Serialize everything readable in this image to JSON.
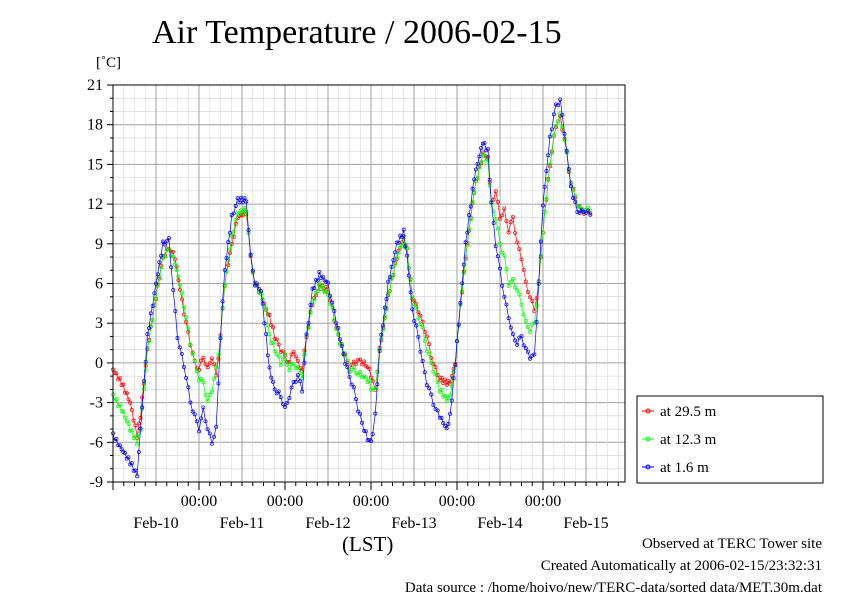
{
  "chart_data": {
    "type": "line",
    "title": "Air Temperature / 2006-02-15",
    "ylabel": "[˚C]",
    "xlabel": "(LST)",
    "ylim": [
      -9,
      21
    ],
    "yticks": [
      -9,
      -6,
      -3,
      0,
      3,
      6,
      9,
      12,
      15,
      18,
      21
    ],
    "xlim_days": [
      0,
      6
    ],
    "xticks": [
      {
        "day": 1,
        "time": "00:00",
        "date": "Feb-10"
      },
      {
        "day": 2,
        "time": "00:00",
        "date": "Feb-11"
      },
      {
        "day": 3,
        "time": "00:00",
        "date": "Feb-12"
      },
      {
        "day": 4,
        "time": "00:00",
        "date": "Feb-13"
      },
      {
        "day": 5,
        "time": "00:00",
        "date": "Feb-14"
      },
      {
        "day": 6,
        "time": "",
        "date": "Feb-15"
      }
    ],
    "grid": true,
    "legend_position": "right",
    "series": [
      {
        "name": "at 29.5 m",
        "color": "#ff0000",
        "points": [
          [
            0.0,
            -0.5
          ],
          [
            0.1,
            -1.5
          ],
          [
            0.2,
            -3
          ],
          [
            0.28,
            -5.5
          ],
          [
            0.32,
            -4
          ],
          [
            0.4,
            1
          ],
          [
            0.5,
            5
          ],
          [
            0.58,
            8
          ],
          [
            0.65,
            8.7
          ],
          [
            0.72,
            8
          ],
          [
            0.78,
            5.5
          ],
          [
            0.85,
            3
          ],
          [
            0.9,
            1.5
          ],
          [
            0.95,
            0
          ],
          [
            1.0,
            -0.5
          ],
          [
            1.05,
            0.5
          ],
          [
            1.1,
            -0.5
          ],
          [
            1.15,
            0.5
          ],
          [
            1.2,
            -1
          ],
          [
            1.25,
            2
          ],
          [
            1.3,
            6
          ],
          [
            1.38,
            9
          ],
          [
            1.45,
            11
          ],
          [
            1.55,
            11.4
          ],
          [
            1.6,
            8
          ],
          [
            1.65,
            6
          ],
          [
            1.72,
            5.3
          ],
          [
            1.78,
            4
          ],
          [
            1.82,
            3.5
          ],
          [
            1.88,
            2
          ],
          [
            1.95,
            1
          ],
          [
            2.0,
            0.5
          ],
          [
            2.05,
            0
          ],
          [
            2.1,
            1
          ],
          [
            2.15,
            0
          ],
          [
            2.2,
            -0.5
          ],
          [
            2.25,
            2
          ],
          [
            2.32,
            4.5
          ],
          [
            2.4,
            5.8
          ],
          [
            2.5,
            5.5
          ],
          [
            2.55,
            4
          ],
          [
            2.62,
            2
          ],
          [
            2.7,
            0.5
          ],
          [
            2.75,
            -0.5
          ],
          [
            2.8,
            0
          ],
          [
            2.85,
            0.2
          ],
          [
            2.92,
            0
          ],
          [
            2.98,
            -0.5
          ],
          [
            3.02,
            -1.5
          ],
          [
            3.05,
            -2
          ],
          [
            3.1,
            1
          ],
          [
            3.2,
            5
          ],
          [
            3.3,
            8
          ],
          [
            3.38,
            9.5
          ],
          [
            3.42,
            8.5
          ],
          [
            3.48,
            5
          ],
          [
            3.55,
            4
          ],
          [
            3.6,
            3
          ],
          [
            3.65,
            2
          ],
          [
            3.7,
            0.5
          ],
          [
            3.75,
            -0.5
          ],
          [
            3.8,
            -1.2
          ],
          [
            3.88,
            -1.5
          ],
          [
            3.92,
            -1.5
          ],
          [
            3.98,
            0
          ],
          [
            4.02,
            3
          ],
          [
            4.1,
            8
          ],
          [
            4.2,
            13
          ],
          [
            4.3,
            15.8
          ],
          [
            4.36,
            15.5
          ],
          [
            4.4,
            12
          ],
          [
            4.45,
            13
          ],
          [
            4.5,
            11
          ],
          [
            4.55,
            11.5
          ],
          [
            4.6,
            10
          ],
          [
            4.65,
            11
          ],
          [
            4.7,
            9
          ],
          [
            4.75,
            8
          ],
          [
            4.8,
            6
          ],
          [
            4.85,
            5
          ],
          [
            4.9,
            4
          ],
          [
            4.95,
            6
          ],
          [
            5.0,
            10
          ],
          [
            5.08,
            15
          ],
          [
            5.15,
            18
          ],
          [
            5.2,
            18.5
          ],
          [
            5.25,
            17
          ],
          [
            5.3,
            14.5
          ],
          [
            5.35,
            13
          ],
          [
            5.4,
            12
          ],
          [
            5.45,
            11.4
          ],
          [
            5.5,
            11.5
          ],
          [
            5.55,
            11.3
          ]
        ]
      },
      {
        "name": "at 12.3 m",
        "color": "#00ff00",
        "points": [
          [
            0.0,
            -2.5
          ],
          [
            0.1,
            -3.5
          ],
          [
            0.2,
            -5
          ],
          [
            0.28,
            -6
          ],
          [
            0.32,
            -5
          ],
          [
            0.4,
            1
          ],
          [
            0.5,
            5
          ],
          [
            0.58,
            8
          ],
          [
            0.65,
            8.6
          ],
          [
            0.72,
            7.5
          ],
          [
            0.78,
            6
          ],
          [
            0.85,
            3.5
          ],
          [
            0.9,
            1.5
          ],
          [
            0.95,
            0
          ],
          [
            1.0,
            -1.2
          ],
          [
            1.05,
            -1.5
          ],
          [
            1.1,
            -3
          ],
          [
            1.15,
            -2
          ],
          [
            1.2,
            -0.5
          ],
          [
            1.25,
            2
          ],
          [
            1.3,
            6
          ],
          [
            1.38,
            9.5
          ],
          [
            1.45,
            11.3
          ],
          [
            1.55,
            11.6
          ],
          [
            1.6,
            8
          ],
          [
            1.65,
            6
          ],
          [
            1.72,
            5.2
          ],
          [
            1.78,
            4
          ],
          [
            1.82,
            2
          ],
          [
            1.88,
            1
          ],
          [
            1.95,
            0
          ],
          [
            2.0,
            0.5
          ],
          [
            2.05,
            -0.5
          ],
          [
            2.1,
            0
          ],
          [
            2.15,
            -0.5
          ],
          [
            2.2,
            -1
          ],
          [
            2.25,
            2
          ],
          [
            2.32,
            4.5
          ],
          [
            2.4,
            5.9
          ],
          [
            2.5,
            5.2
          ],
          [
            2.55,
            4
          ],
          [
            2.62,
            2
          ],
          [
            2.7,
            0.5
          ],
          [
            2.75,
            -0.5
          ],
          [
            2.8,
            -0.5
          ],
          [
            2.85,
            -0.8
          ],
          [
            2.92,
            -1
          ],
          [
            2.98,
            -1.5
          ],
          [
            3.02,
            -2.2
          ],
          [
            3.05,
            -2
          ],
          [
            3.1,
            1
          ],
          [
            3.2,
            5
          ],
          [
            3.3,
            8
          ],
          [
            3.38,
            9.3
          ],
          [
            3.42,
            8.5
          ],
          [
            3.48,
            5
          ],
          [
            3.55,
            3.5
          ],
          [
            3.6,
            2.5
          ],
          [
            3.65,
            1
          ],
          [
            3.7,
            0
          ],
          [
            3.75,
            -1
          ],
          [
            3.8,
            -2
          ],
          [
            3.88,
            -2.8
          ],
          [
            3.92,
            -2.5
          ],
          [
            3.98,
            0
          ],
          [
            4.02,
            3
          ],
          [
            4.1,
            8
          ],
          [
            4.2,
            13
          ],
          [
            4.3,
            15.8
          ],
          [
            4.36,
            15.2
          ],
          [
            4.4,
            12
          ],
          [
            4.45,
            11
          ],
          [
            4.5,
            9
          ],
          [
            4.55,
            8
          ],
          [
            4.6,
            6
          ],
          [
            4.65,
            6.2
          ],
          [
            4.7,
            5.5
          ],
          [
            4.75,
            4.5
          ],
          [
            4.8,
            3
          ],
          [
            4.85,
            2.5
          ],
          [
            4.9,
            3
          ],
          [
            4.95,
            6
          ],
          [
            5.0,
            10
          ],
          [
            5.08,
            15
          ],
          [
            5.15,
            18
          ],
          [
            5.2,
            18.7
          ],
          [
            5.25,
            17
          ],
          [
            5.3,
            14.5
          ],
          [
            5.35,
            13
          ],
          [
            5.4,
            12
          ],
          [
            5.45,
            11.5
          ],
          [
            5.5,
            11.6
          ],
          [
            5.55,
            11.5
          ]
        ]
      },
      {
        "name": "at 1.6 m",
        "color": "#0000ff",
        "points": [
          [
            0.0,
            -5.5
          ],
          [
            0.1,
            -6.5
          ],
          [
            0.2,
            -7.5
          ],
          [
            0.28,
            -8.5
          ],
          [
            0.32,
            -5
          ],
          [
            0.4,
            2
          ],
          [
            0.5,
            6
          ],
          [
            0.58,
            9
          ],
          [
            0.65,
            9.3
          ],
          [
            0.7,
            5.5
          ],
          [
            0.75,
            2
          ],
          [
            0.8,
            0.5
          ],
          [
            0.85,
            -1
          ],
          [
            0.9,
            -3
          ],
          [
            0.95,
            -4
          ],
          [
            1.0,
            -5
          ],
          [
            1.05,
            -3.5
          ],
          [
            1.1,
            -5
          ],
          [
            1.15,
            -6
          ],
          [
            1.2,
            -5
          ],
          [
            1.25,
            2
          ],
          [
            1.3,
            7
          ],
          [
            1.38,
            11
          ],
          [
            1.45,
            12.3
          ],
          [
            1.55,
            12.3
          ],
          [
            1.6,
            8
          ],
          [
            1.65,
            6
          ],
          [
            1.72,
            5.5
          ],
          [
            1.78,
            2
          ],
          [
            1.82,
            -0.5
          ],
          [
            1.88,
            -2
          ],
          [
            1.95,
            -2.5
          ],
          [
            2.0,
            -3.5
          ],
          [
            2.05,
            -2.5
          ],
          [
            2.1,
            -1.5
          ],
          [
            2.15,
            -1
          ],
          [
            2.2,
            -2
          ],
          [
            2.25,
            2
          ],
          [
            2.32,
            5.5
          ],
          [
            2.4,
            6.7
          ],
          [
            2.5,
            6
          ],
          [
            2.55,
            4.5
          ],
          [
            2.62,
            2.5
          ],
          [
            2.7,
            0
          ],
          [
            2.75,
            -1
          ],
          [
            2.8,
            -2
          ],
          [
            2.85,
            -3.5
          ],
          [
            2.92,
            -5
          ],
          [
            2.98,
            -6
          ],
          [
            3.02,
            -5.5
          ],
          [
            3.05,
            -4
          ],
          [
            3.1,
            1
          ],
          [
            3.2,
            6
          ],
          [
            3.3,
            9
          ],
          [
            3.38,
            9.9
          ],
          [
            3.42,
            8
          ],
          [
            3.48,
            4
          ],
          [
            3.55,
            2
          ],
          [
            3.6,
            0
          ],
          [
            3.65,
            -1.5
          ],
          [
            3.7,
            -2.5
          ],
          [
            3.75,
            -3.5
          ],
          [
            3.8,
            -4
          ],
          [
            3.88,
            -5
          ],
          [
            3.92,
            -4
          ],
          [
            3.98,
            0
          ],
          [
            4.02,
            3
          ],
          [
            4.1,
            9
          ],
          [
            4.2,
            14
          ],
          [
            4.3,
            16.7
          ],
          [
            4.36,
            16
          ],
          [
            4.4,
            12
          ],
          [
            4.45,
            9
          ],
          [
            4.5,
            7
          ],
          [
            4.55,
            5
          ],
          [
            4.6,
            3.5
          ],
          [
            4.65,
            2
          ],
          [
            4.7,
            1.5
          ],
          [
            4.75,
            2
          ],
          [
            4.8,
            1
          ],
          [
            4.85,
            0.5
          ],
          [
            4.9,
            0.5
          ],
          [
            4.95,
            6
          ],
          [
            5.0,
            12
          ],
          [
            5.08,
            17
          ],
          [
            5.15,
            19.5
          ],
          [
            5.2,
            19.8
          ],
          [
            5.25,
            17.5
          ],
          [
            5.3,
            14.5
          ],
          [
            5.35,
            12.5
          ],
          [
            5.4,
            11.5
          ],
          [
            5.45,
            11.4
          ],
          [
            5.5,
            11.5
          ],
          [
            5.55,
            11.2
          ]
        ]
      }
    ]
  },
  "footer": {
    "line1": "Observed at TERC Tower site",
    "line2": "Created Automatically at 2006-02-15/23:32:31",
    "line3": "Data source : /home/hoivo/new/TERC-data/sorted  data/MET.30m.dat"
  }
}
